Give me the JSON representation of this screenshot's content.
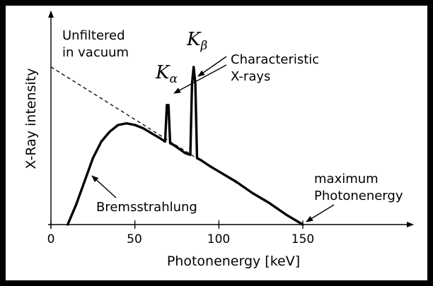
{
  "axes": {
    "x_label": "Photonenergy [keV]",
    "y_label": "X-Ray intensity",
    "x_ticks": [
      "0",
      "50",
      "100",
      "150"
    ]
  },
  "annotations": {
    "unfiltered_line1": "Unfiltered",
    "unfiltered_line2": "in vacuum",
    "characteristic_line1": "Characteristic",
    "characteristic_line2": "X-rays",
    "k_alpha_letter": "K",
    "k_alpha_sub": "α",
    "k_beta_letter": "K",
    "k_beta_sub": "β",
    "bremsstrahlung": "Bremsstrahlung",
    "maximum_line1": "maximum",
    "maximum_line2": "Photonenergy"
  },
  "chart_data": {
    "type": "line",
    "x_axis_ticks": [
      0,
      50,
      100,
      150
    ],
    "series": [
      {
        "x": [
          10,
          15,
          20,
          25,
          30,
          35,
          40,
          45,
          50,
          55,
          60,
          65,
          68,
          69,
          70,
          71,
          73,
          80,
          83,
          84,
          85,
          86,
          87,
          89,
          95,
          100,
          110,
          120,
          130,
          140,
          150
        ],
        "y": [
          0,
          0.12,
          0.26,
          0.4,
          0.5,
          0.56,
          0.6,
          0.61,
          0.6,
          0.58,
          0.55,
          0.52,
          0.5,
          0.72,
          0.72,
          0.49,
          0.48,
          0.43,
          0.42,
          0.85,
          0.95,
          0.85,
          0.4,
          0.39,
          0.35,
          0.32,
          0.26,
          0.19,
          0.13,
          0.06,
          0
        ]
      },
      {
        "x": [
          0,
          150
        ],
        "y": [
          0.95,
          0
        ]
      }
    ],
    "x_range": [
      0,
      210
    ],
    "y_range": [
      0,
      1
    ]
  }
}
